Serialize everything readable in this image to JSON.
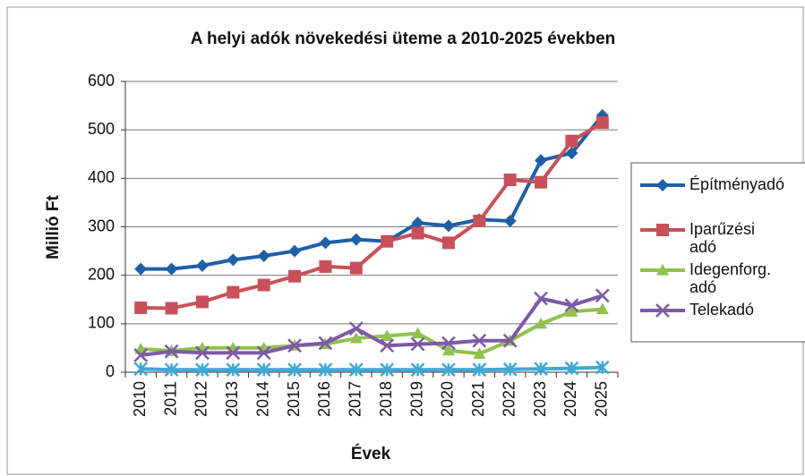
{
  "chart_data": {
    "type": "line",
    "title": "A helyi adók növekedési üteme a 2010-2025 években",
    "x_label": "Évek",
    "y_label": "Millió Ft",
    "categories": [
      "2010",
      "2011",
      "2012",
      "2013",
      "2014",
      "2015",
      "2016",
      "2017",
      "2018",
      "2019",
      "2020",
      "2021",
      "2022",
      "2023",
      "2024",
      "2025"
    ],
    "series": [
      {
        "name": "Építményadó",
        "color": "#1f5fa8",
        "marker": "diamond",
        "values": [
          213,
          213,
          220,
          232,
          240,
          250,
          267,
          274,
          270,
          308,
          302,
          315,
          312,
          437,
          452,
          530
        ]
      },
      {
        "name": "Iparűzési adó",
        "color": "#c9505a",
        "marker": "square",
        "values": [
          133,
          132,
          145,
          165,
          180,
          198,
          218,
          215,
          270,
          287,
          267,
          312,
          397,
          392,
          477,
          515
        ]
      },
      {
        "name": "Idegenforg. adó",
        "color": "#8fc24e",
        "marker": "triangle",
        "values": [
          48,
          44,
          50,
          50,
          50,
          55,
          58,
          70,
          75,
          80,
          45,
          38,
          65,
          100,
          125,
          130
        ]
      },
      {
        "name": "Telekadó",
        "color": "#7d5aa6",
        "marker": "x",
        "values": [
          35,
          43,
          40,
          40,
          40,
          55,
          60,
          90,
          55,
          58,
          60,
          65,
          65,
          152,
          138,
          158
        ]
      },
      {
        "color": "#3fa9d6",
        "marker": "asterisk",
        "values": [
          7,
          5,
          5,
          5,
          5,
          5,
          5,
          5,
          5,
          5,
          5,
          5,
          6,
          7,
          8,
          10
        ]
      }
    ],
    "ylim": [
      0,
      600
    ],
    "yticks": [
      0,
      100,
      200,
      300,
      400,
      500,
      600
    ],
    "grid": true,
    "legend": "right"
  }
}
